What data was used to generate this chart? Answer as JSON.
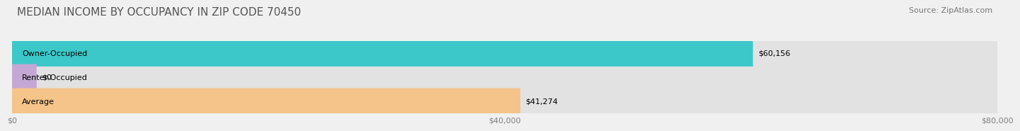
{
  "title": "MEDIAN INCOME BY OCCUPANCY IN ZIP CODE 70450",
  "source": "Source: ZipAtlas.com",
  "categories": [
    "Owner-Occupied",
    "Renter-Occupied",
    "Average"
  ],
  "values": [
    60156,
    0,
    41274
  ],
  "labels": [
    "$60,156",
    "$0",
    "$41,274"
  ],
  "bar_colors": [
    "#3cc8c8",
    "#c4a8d4",
    "#f5c48a"
  ],
  "bg_color": "#f0f0f0",
  "bar_bg_color": "#e2e2e2",
  "xlim": [
    0,
    80000
  ],
  "xticks": [
    0,
    40000,
    80000
  ],
  "xticklabels": [
    "$0",
    "$40,000",
    "$80,000"
  ],
  "title_fontsize": 11,
  "source_fontsize": 8,
  "label_fontsize": 8,
  "cat_fontsize": 8
}
